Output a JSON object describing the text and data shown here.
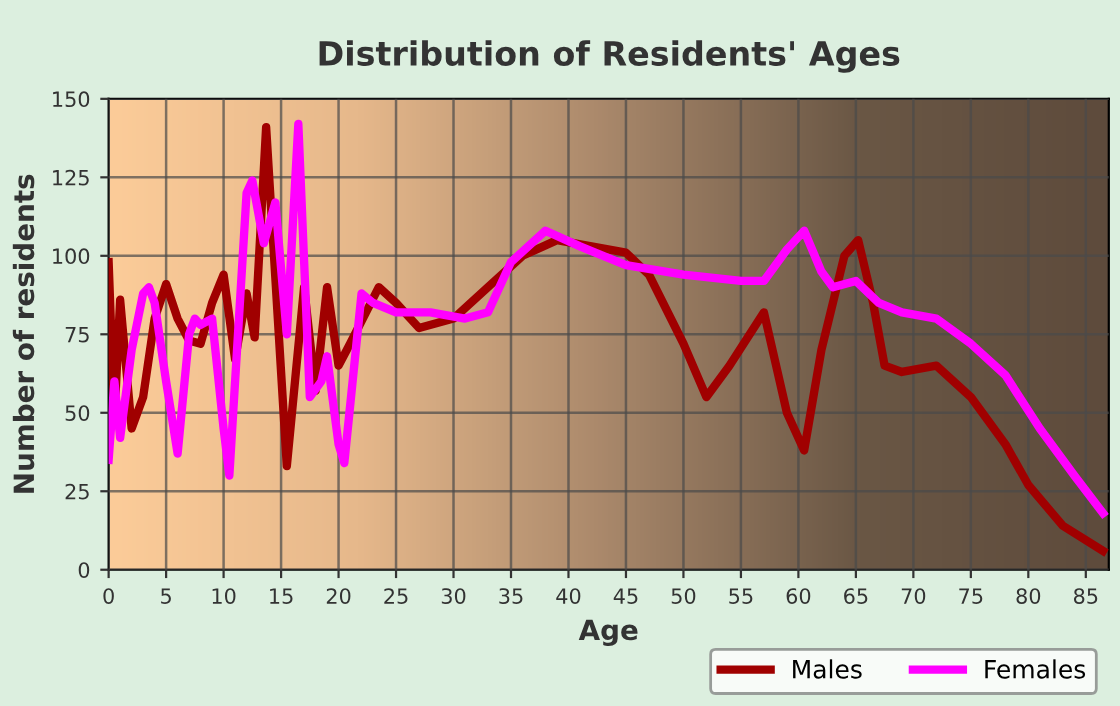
{
  "chart_data": {
    "type": "line",
    "title": "Distribution of Residents' Ages",
    "xlabel": "Age",
    "ylabel": "Number of residents",
    "xlim": [
      0,
      87
    ],
    "ylim": [
      0,
      150
    ],
    "xticks": [
      0,
      5,
      10,
      15,
      20,
      25,
      30,
      35,
      40,
      45,
      50,
      55,
      60,
      65,
      70,
      75,
      80,
      85
    ],
    "yticks": [
      0,
      25,
      50,
      75,
      100,
      125,
      150
    ],
    "grid": true,
    "legend": "bottom right",
    "marker": "none",
    "line_style": "solid",
    "series": [
      {
        "name": "Males",
        "color": "#a00000",
        "x": [
          0,
          0.5,
          1,
          2,
          3,
          4,
          5,
          6,
          7,
          8,
          9,
          10,
          11,
          12,
          12.7,
          13.7,
          15.5,
          17,
          18,
          19,
          20,
          21,
          23.5,
          25,
          27,
          30,
          33,
          36,
          39,
          42,
          45,
          47,
          50,
          52,
          54,
          57,
          59,
          60.5,
          62,
          64,
          65.2,
          66.5,
          67.5,
          69,
          72,
          75,
          78,
          80,
          83,
          86.5
        ],
        "values": [
          98,
          48,
          86,
          45,
          55,
          80,
          91,
          80,
          73,
          72,
          85,
          94,
          67,
          88,
          74,
          141,
          33,
          90,
          57,
          90,
          65,
          72,
          90,
          85,
          77,
          80,
          90,
          100,
          105,
          103,
          101,
          94,
          72,
          55,
          65,
          82,
          50,
          38,
          70,
          100,
          105,
          85,
          65,
          63,
          65,
          55,
          40,
          27,
          14,
          6
        ]
      },
      {
        "name": "Females",
        "color": "#ff00ff",
        "x": [
          0,
          0.5,
          1,
          2,
          3,
          3.5,
          4,
          5,
          6,
          7,
          7.5,
          8,
          9,
          10,
          10.5,
          11.5,
          12,
          12.5,
          13.5,
          14.5,
          15.5,
          16.5,
          17.5,
          18.5,
          19,
          20,
          20.5,
          22,
          23,
          25,
          28,
          31,
          33,
          35,
          38,
          41,
          45,
          50,
          55,
          57,
          59,
          60.5,
          62,
          63,
          65,
          67,
          69,
          72,
          75,
          78,
          81,
          84,
          86.5
        ],
        "values": [
          35,
          60,
          42,
          70,
          88,
          90,
          85,
          60,
          37,
          75,
          80,
          78,
          80,
          45,
          30,
          90,
          120,
          124,
          104,
          117,
          75,
          142,
          55,
          60,
          68,
          40,
          34,
          88,
          85,
          82,
          82,
          80,
          82,
          98,
          108,
          103,
          97,
          94,
          92,
          92,
          102,
          108,
          95,
          90,
          92,
          85,
          82,
          80,
          72,
          62,
          45,
          30,
          18
        ]
      }
    ]
  }
}
